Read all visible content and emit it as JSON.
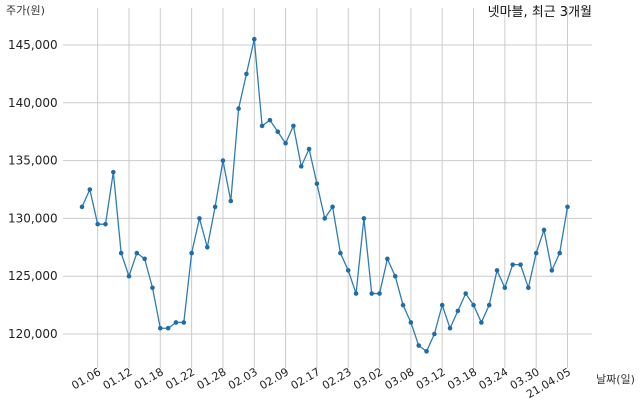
{
  "chart_data": {
    "type": "line",
    "title": "넷마블, 최근 3개월",
    "ylabel": "주가(원)",
    "xlabel": "날짜(일)",
    "ylim": [
      117000,
      147500
    ],
    "yticks": [
      120000,
      125000,
      130000,
      135000,
      140000,
      145000
    ],
    "ytick_labels": [
      "120,000",
      "125,000",
      "130,000",
      "135,000",
      "140,000",
      "145,000"
    ],
    "xtick_labels": [
      "01.06",
      "01.12",
      "01.18",
      "01.22",
      "01.28",
      "02.03",
      "02.09",
      "02.17",
      "02.23",
      "03.02",
      "03.08",
      "03.12",
      "03.18",
      "03.24",
      "03.30",
      "21.04.05"
    ],
    "xtick_index": [
      2,
      6,
      10,
      14,
      18,
      22,
      26,
      30,
      34,
      38,
      42,
      46,
      50,
      54,
      58,
      62
    ],
    "grid": true,
    "series": [
      {
        "values": [
          131000,
          132500,
          129500,
          129500,
          134000,
          127000,
          125000,
          127000,
          126500,
          124000,
          120500,
          120500,
          121000,
          121000,
          127000,
          130000,
          127500,
          131000,
          135000,
          131500,
          139500,
          142500,
          145500,
          138000,
          138500,
          137500,
          136500,
          138000,
          134500,
          136000,
          133000,
          130000,
          131000,
          127000,
          125500,
          123500,
          130000,
          123500,
          123500,
          126500,
          125000,
          122500,
          121000,
          119000,
          118500,
          120000,
          122500,
          120500,
          122000,
          123500,
          122500,
          121000,
          122500,
          125500,
          124000,
          126000,
          126000,
          124000,
          127000,
          129000,
          125500,
          127000,
          131000
        ],
        "color": "#2e7db3"
      }
    ]
  }
}
